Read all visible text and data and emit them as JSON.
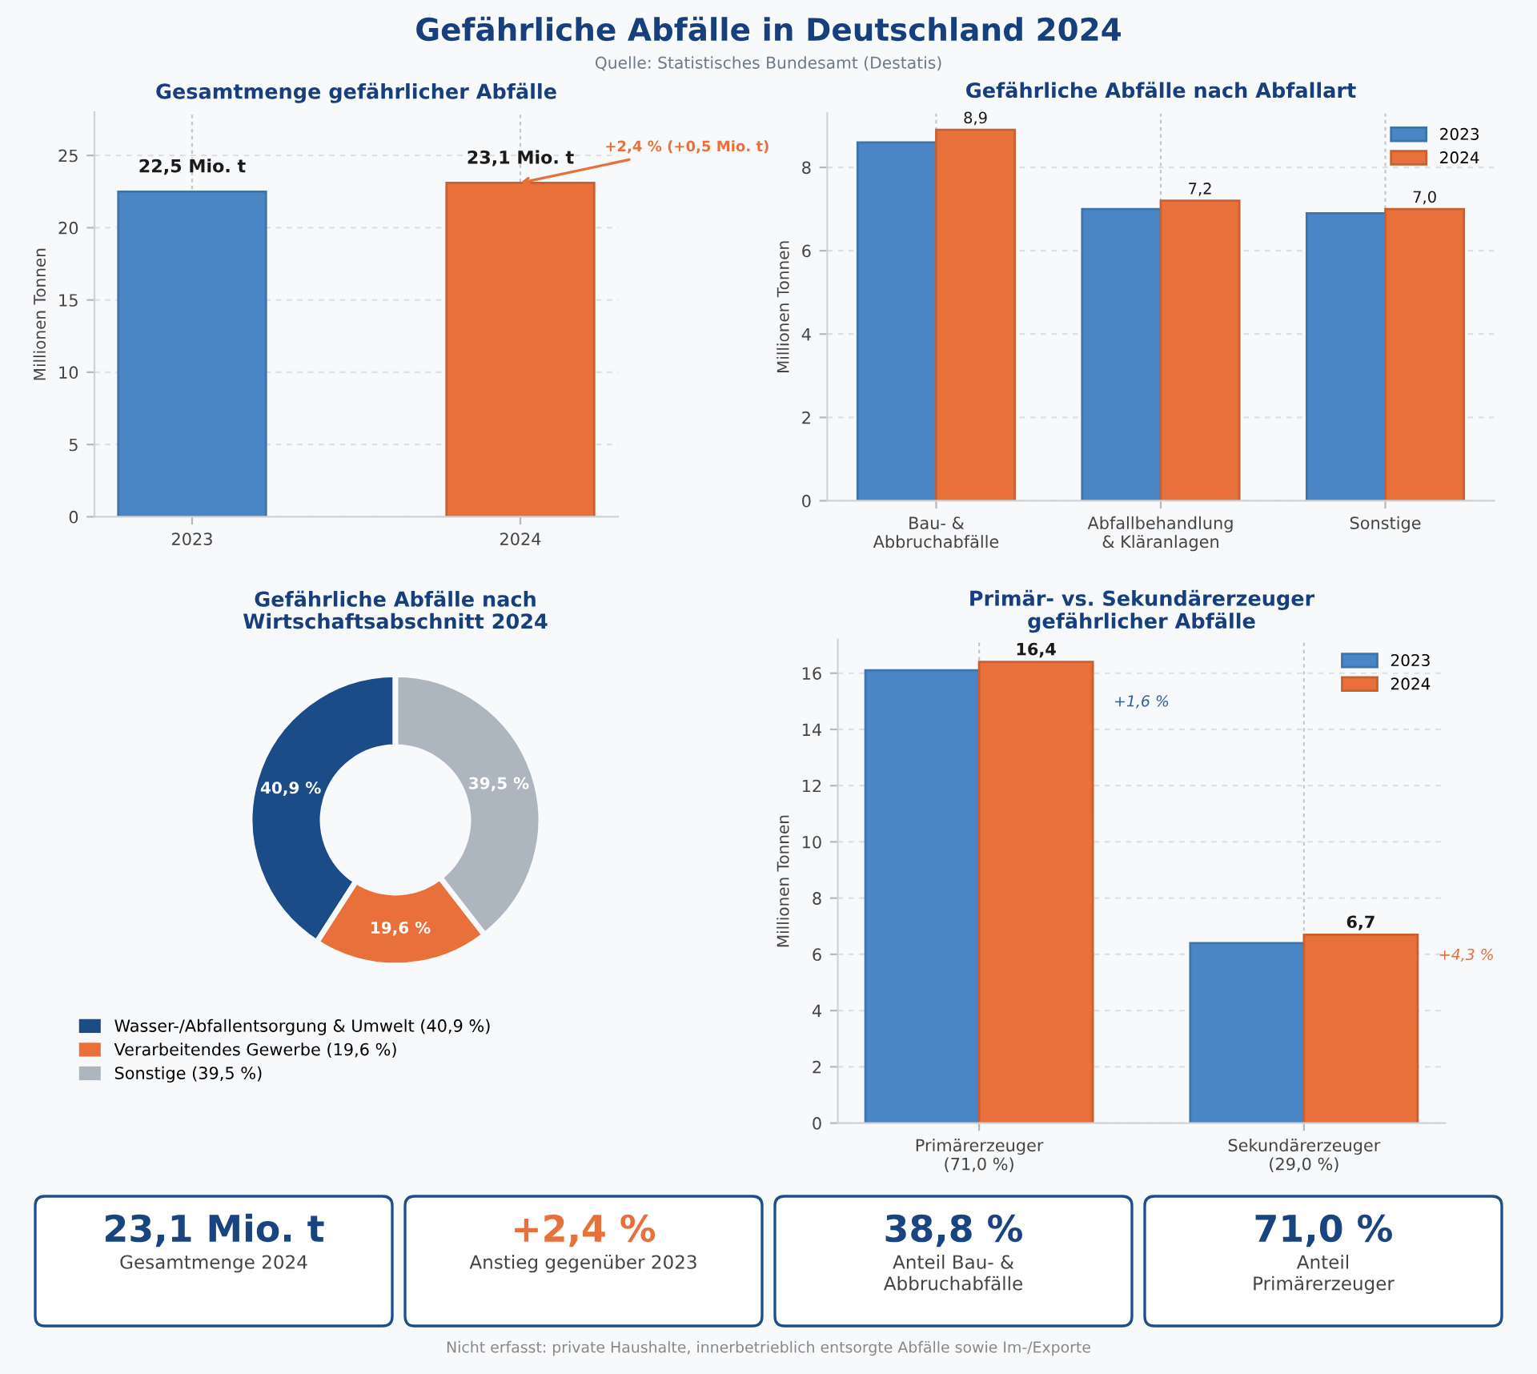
{
  "chart_data": [
    {
      "type": "other",
      "title": "Gefährliche Abfälle in Deutschland 2024",
      "subtitle": "Quelle: Statistisches Bundesamt (Destatis)"
    },
    {
      "type": "bar",
      "title": "Gesamtmenge gefährlicher Abfälle",
      "ylabel": "Millionen Tonnen",
      "categories": [
        "2023",
        "2024"
      ],
      "values": [
        22.5,
        23.1
      ],
      "colors": [
        "#4a86c5",
        "#e8703a"
      ],
      "value_labels": [
        "22,5 Mio. t",
        "23,1 Mio. t"
      ],
      "ylim": [
        0,
        28
      ],
      "yticks": [
        0,
        5,
        10,
        15,
        20,
        25
      ],
      "grid": true,
      "annotations": [
        {
          "text": "+2,4 % (+0,5 Mio. t)",
          "x": "2024",
          "y": 23.1
        }
      ]
    },
    {
      "type": "bar",
      "title": "Gefährliche Abfälle nach Abfallart",
      "ylabel": "Millionen Tonnen",
      "categories": [
        "Bau- &\nAbbruchabfälle",
        "Abfallbehandlung\n& Kläranlagen",
        "Sonstige"
      ],
      "series": [
        {
          "name": "2023",
          "color": "#4a86c5",
          "values": [
            8.6,
            7.0,
            6.9
          ]
        },
        {
          "name": "2024",
          "color": "#e8703a",
          "values": [
            8.9,
            7.2,
            7.0
          ],
          "value_labels": [
            "8,9",
            "7,2",
            "7,0"
          ]
        }
      ],
      "ylim": [
        0,
        9.3
      ],
      "yticks": [
        0,
        2,
        4,
        6,
        8
      ],
      "grid": true,
      "legend": "top right"
    },
    {
      "type": "donut",
      "title": "Gefährliche Abfälle nach\nWirtschaftsabschnitt 2024",
      "categories": [
        "Wasser-/Abfallentsorgung & Umwelt (40,9 %)",
        "Verarbeitendes Gewerbe (19,6 %)",
        "Sonstige (39,5 %)"
      ],
      "values": [
        40.9,
        19.6,
        39.5
      ],
      "colors": [
        "#1b4c87",
        "#e8703a",
        "#adb5bf"
      ],
      "value_labels": [
        "40,9 %",
        "19,6 %",
        "39,5 %"
      ],
      "legend": "bottom left"
    },
    {
      "type": "bar",
      "title": "Primär- vs. Sekundärerzeuger\ngefährlicher Abfälle",
      "ylabel": "Millionen Tonnen",
      "categories": [
        "Primärerzeuger\n(71,0 %)",
        "Sekundärerzeuger\n(29,0 %)"
      ],
      "series": [
        {
          "name": "2023",
          "color": "#4a86c5",
          "values": [
            16.1,
            6.4
          ]
        },
        {
          "name": "2024",
          "color": "#e8703a",
          "values": [
            16.4,
            6.7
          ],
          "value_labels": [
            "16,4",
            "6,7"
          ]
        }
      ],
      "ylim": [
        0,
        17.2
      ],
      "yticks": [
        0,
        2,
        4,
        6,
        8,
        10,
        12,
        14,
        16
      ],
      "grid": true,
      "legend": "top right",
      "annotations": [
        "+1,6 %",
        "+4,3 %"
      ]
    },
    {
      "type": "other",
      "annotations": [
        "23,1 Mio. t",
        "Gesamtmenge 2024",
        "+2,4 %",
        "Anstieg gegenüber 2023",
        "38,8 %",
        "Anteil Bau- &\nAbbruchabfälle",
        "71,0 %",
        "Anteil\nPrimärerzeuger",
        "Nicht erfasst: private Haushalte, innerbetrieblich entsorgte Abfälle sowie Im-/Exporte"
      ],
      "colors": [
        "#1a4480",
        "#e8703a",
        "#1a4480",
        "#1a4480"
      ]
    }
  ]
}
